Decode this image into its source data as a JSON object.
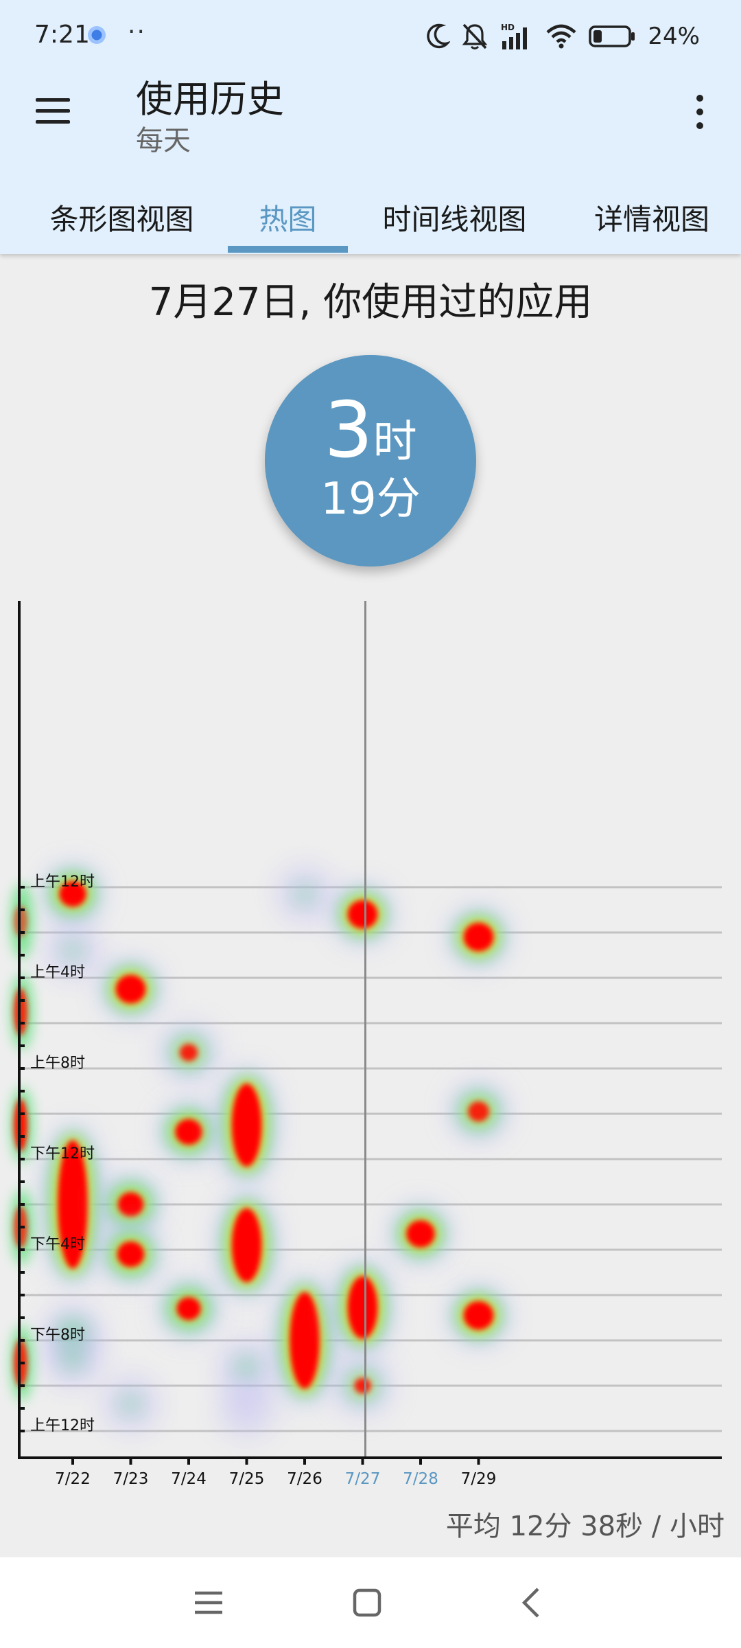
{
  "status_bar": {
    "time": "7:21",
    "dots": "··",
    "battery_percent": "24%",
    "icons": [
      "moon-icon",
      "bell-off-icon",
      "hd-signal-icon",
      "wifi-icon",
      "battery-icon"
    ]
  },
  "app_bar": {
    "title": "使用历史",
    "subtitle": "每天"
  },
  "tabs": [
    {
      "label": "条形图视图",
      "active": false
    },
    {
      "label": "热图",
      "active": true
    },
    {
      "label": "时间线视图",
      "active": false
    },
    {
      "label": "详情视图",
      "active": false
    }
  ],
  "heading": "7月27日, 你使用过的应用",
  "total": {
    "hours_value": "3",
    "hours_unit": "时",
    "minutes_text": "19分"
  },
  "chart_data": {
    "type": "heatmap",
    "x_categories": [
      "7/22",
      "7/23",
      "7/24",
      "7/25",
      "7/26",
      "7/27",
      "7/28",
      "7/29"
    ],
    "highlighted_categories": [
      "7/27",
      "7/28"
    ],
    "selected_category": "7/27",
    "y_labels": [
      "上午12时",
      "上午4时",
      "上午8时",
      "下午12时",
      "下午4时",
      "下午8时",
      "上午12时"
    ],
    "y_range_hours": [
      0,
      24
    ],
    "hotspots": [
      {
        "x": "7/22",
        "hour": 0.3,
        "hour_end": 0.3,
        "level": 0.9
      },
      {
        "x": "7/22",
        "hour": 2.8,
        "hour_end": 2.8,
        "level": 0.3
      },
      {
        "x": "7/22",
        "hour": 11.8,
        "hour_end": 16.2,
        "level": 1.0
      },
      {
        "x": "7/22",
        "hour": 19.7,
        "hour_end": 19.7,
        "level": 0.5
      },
      {
        "x": "7/22",
        "hour": 20.8,
        "hour_end": 20.8,
        "level": 0.35
      },
      {
        "x": "7/23",
        "hour": 4.5,
        "hour_end": 4.5,
        "level": 1.0
      },
      {
        "x": "7/23",
        "hour": 14.0,
        "hour_end": 14.0,
        "level": 0.85
      },
      {
        "x": "7/23",
        "hour": 16.2,
        "hour_end": 16.2,
        "level": 0.9
      },
      {
        "x": "7/23",
        "hour": 22.8,
        "hour_end": 22.8,
        "level": 0.3
      },
      {
        "x": "7/24",
        "hour": 7.3,
        "hour_end": 7.3,
        "level": 0.6
      },
      {
        "x": "7/24",
        "hour": 10.8,
        "hour_end": 10.8,
        "level": 0.9
      },
      {
        "x": "7/24",
        "hour": 18.6,
        "hour_end": 18.6,
        "level": 0.8
      },
      {
        "x": "7/25",
        "hour": 9.3,
        "hour_end": 11.7,
        "level": 1.0
      },
      {
        "x": "7/25",
        "hour": 14.8,
        "hour_end": 16.8,
        "level": 1.0
      },
      {
        "x": "7/25",
        "hour": 21.2,
        "hour_end": 21.2,
        "level": 0.35
      },
      {
        "x": "7/25",
        "hour": 23.0,
        "hour_end": 23.0,
        "level": 0.25
      },
      {
        "x": "7/26",
        "hour": 0.3,
        "hour_end": 0.3,
        "level": 0.3
      },
      {
        "x": "7/26",
        "hour": 18.5,
        "hour_end": 21.5,
        "level": 1.0
      },
      {
        "x": "7/27",
        "hour": 1.2,
        "hour_end": 1.2,
        "level": 1.0
      },
      {
        "x": "7/27",
        "hour": 17.8,
        "hour_end": 19.3,
        "level": 1.0
      },
      {
        "x": "7/27",
        "hour": 22.0,
        "hour_end": 22.0,
        "level": 0.55
      },
      {
        "x": "7/28",
        "hour": 15.3,
        "hour_end": 15.3,
        "level": 0.95
      },
      {
        "x": "7/29",
        "hour": 2.2,
        "hour_end": 2.2,
        "level": 1.0
      },
      {
        "x": "7/29",
        "hour": 9.9,
        "hour_end": 9.9,
        "level": 0.7
      },
      {
        "x": "7/29",
        "hour": 18.9,
        "hour_end": 18.9,
        "level": 1.0
      }
    ]
  },
  "average": "平均 12分 38秒 / 小时",
  "nav_bar": {
    "icons": [
      "menu-lines-icon",
      "home-square-icon",
      "back-chevron-icon"
    ]
  },
  "colors": {
    "accent": "#5a97c2",
    "circle": "#5b97c0",
    "app_bar": "#e1f0fc",
    "background": "#eeeeee"
  }
}
